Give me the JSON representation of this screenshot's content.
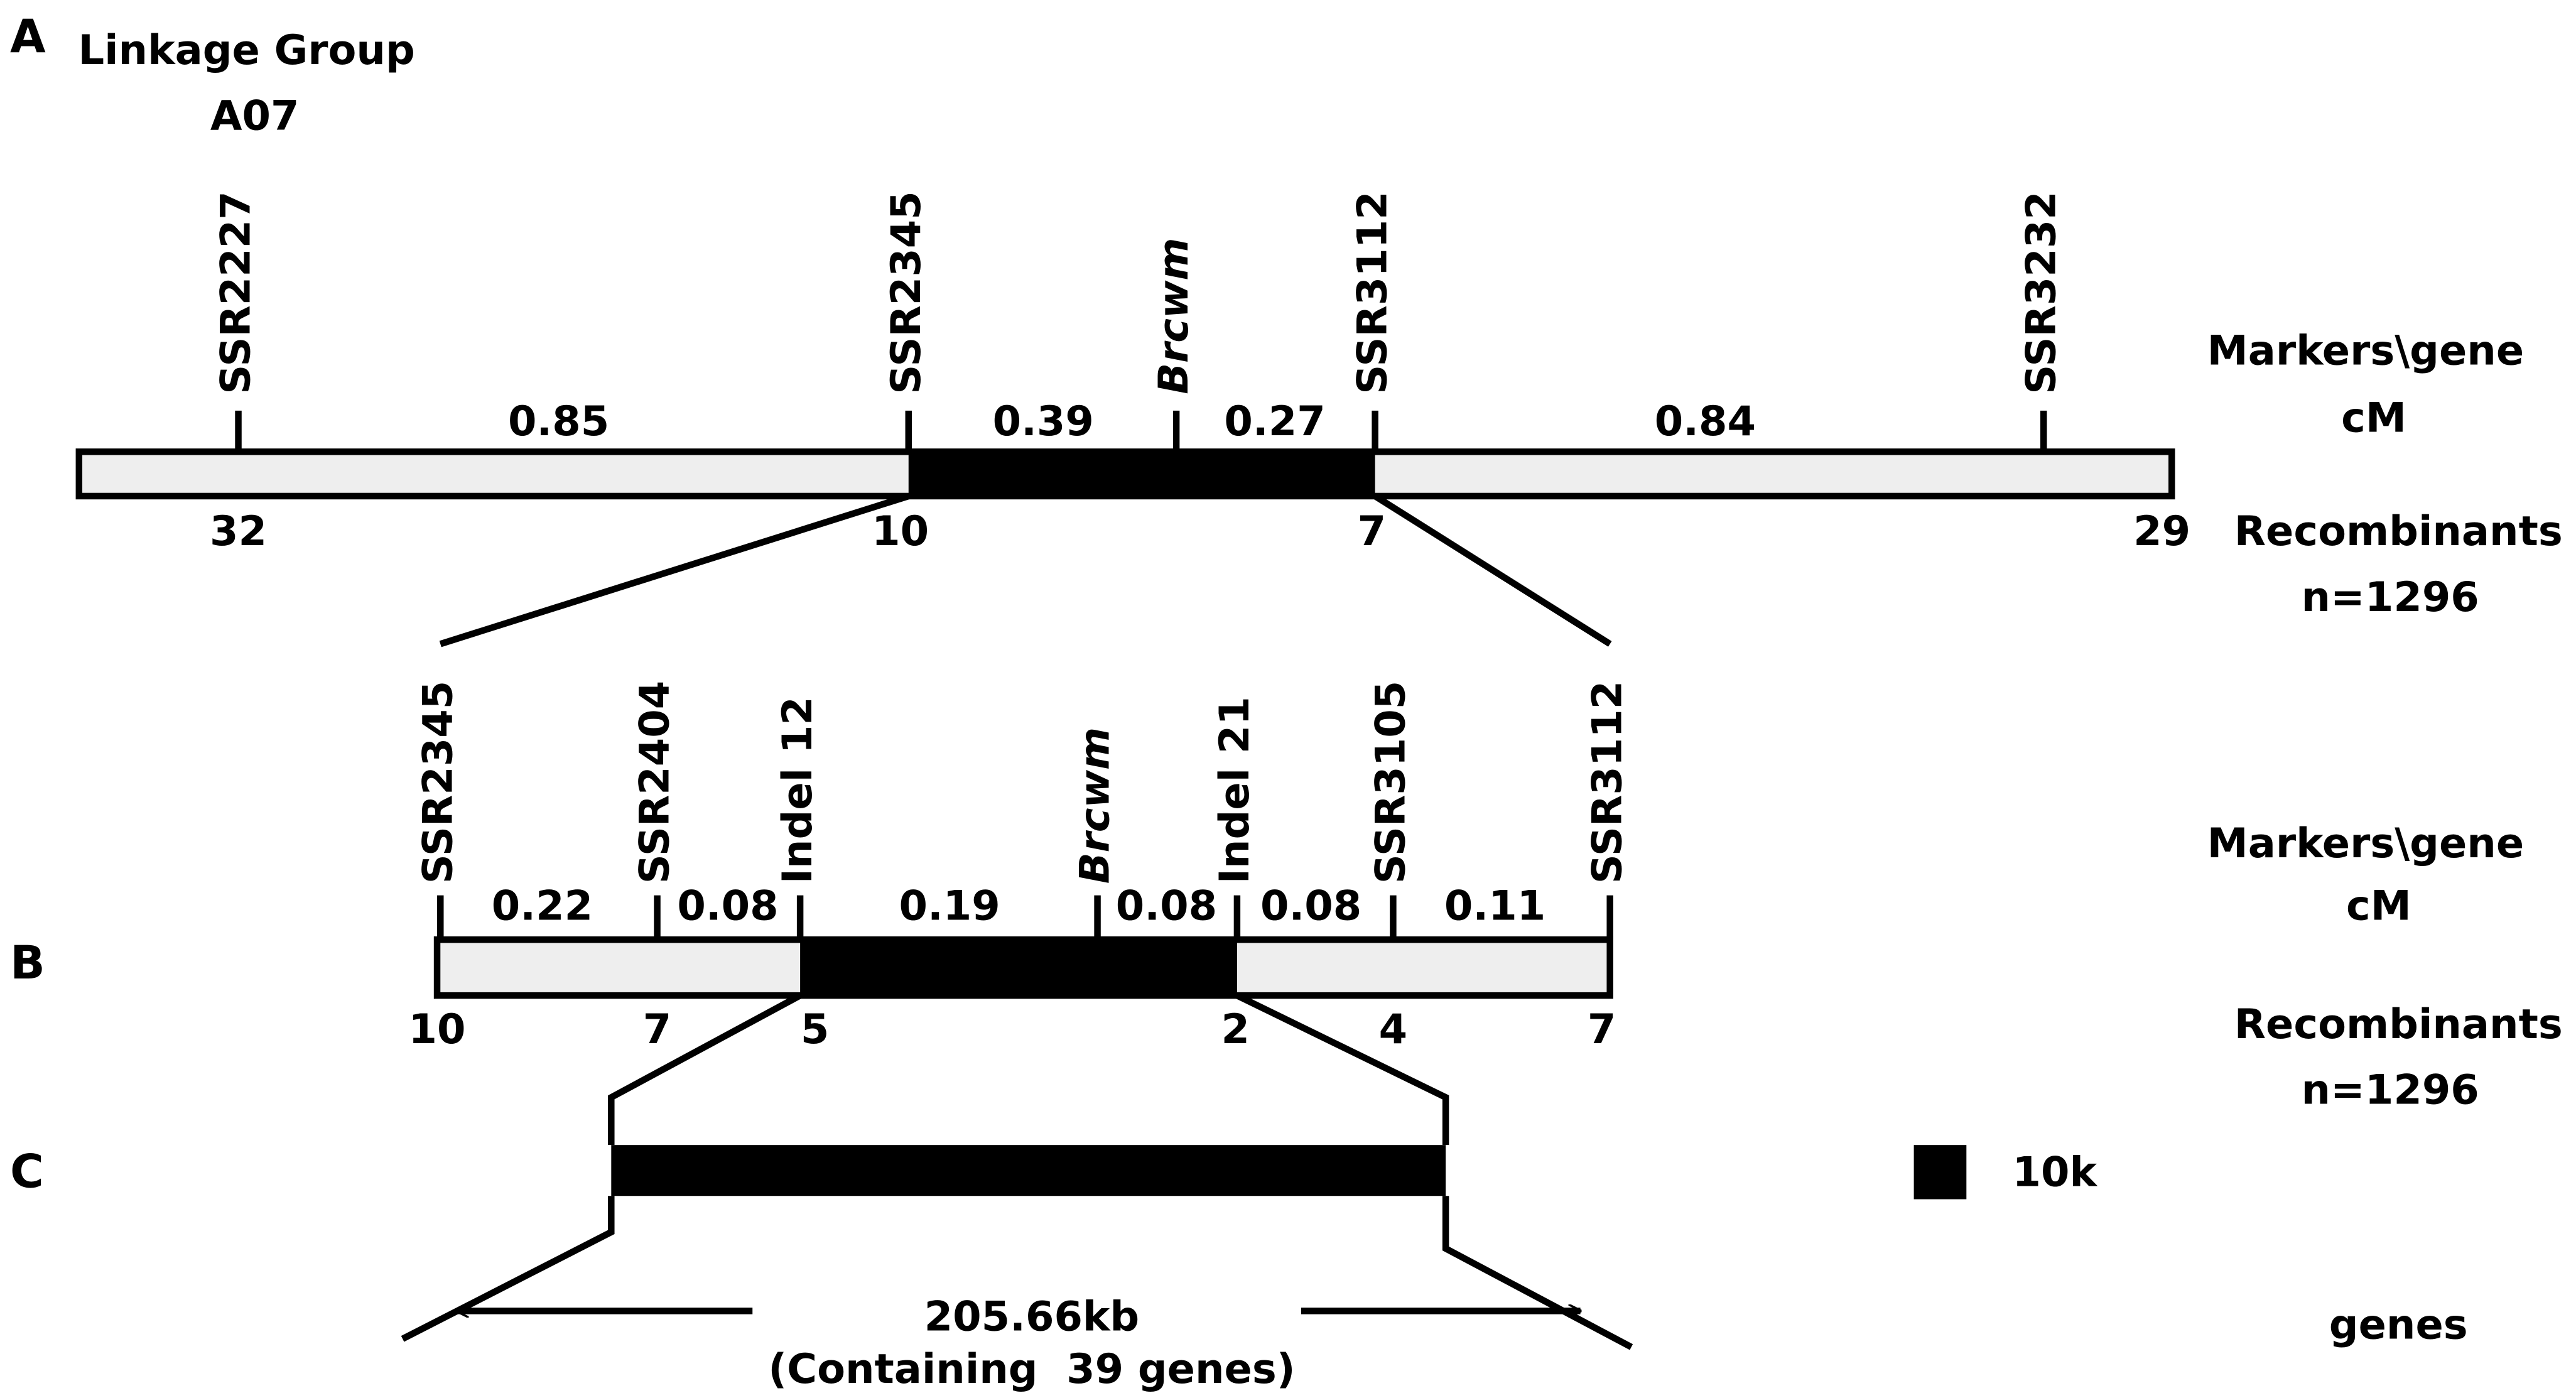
{
  "panel_labels": [
    "A",
    "B",
    "C"
  ],
  "linkage_group": {
    "title": "Linkage Group",
    "name": "A07"
  },
  "panel_a": {
    "markers": [
      "SSR2227",
      "SSR2345",
      "Brcwm",
      "SSR3112",
      "SSR3232"
    ],
    "intervals_cm": [
      "0.85",
      "0.39",
      "0.27",
      "0.84"
    ],
    "recombinants": [
      "32",
      "10",
      "7",
      "29"
    ],
    "side_labels": {
      "markers": "Markers\\gene",
      "cm": "cM",
      "recombinants": "Recombinants",
      "n": "n=1296"
    }
  },
  "panel_b": {
    "markers": [
      "SSR2345",
      "SSR2404",
      "Indel 12",
      "Brcwm",
      "Indel 21",
      "SSR3105",
      "SSR3112"
    ],
    "intervals_cm": [
      "0.22",
      "0.08",
      "0.19",
      "0.08",
      "0.08",
      "0.11"
    ],
    "recombinants": [
      "10",
      "7",
      "5",
      "2",
      "4",
      "7"
    ],
    "side_labels": {
      "markers": "Markers\\gene",
      "cm": "cM",
      "recombinants": "Recombinants",
      "n": "n=1296"
    }
  },
  "panel_c": {
    "scale": "10k",
    "size": "205.66kb",
    "contains": "(Containing  39 genes)",
    "genes_label": "genes"
  }
}
